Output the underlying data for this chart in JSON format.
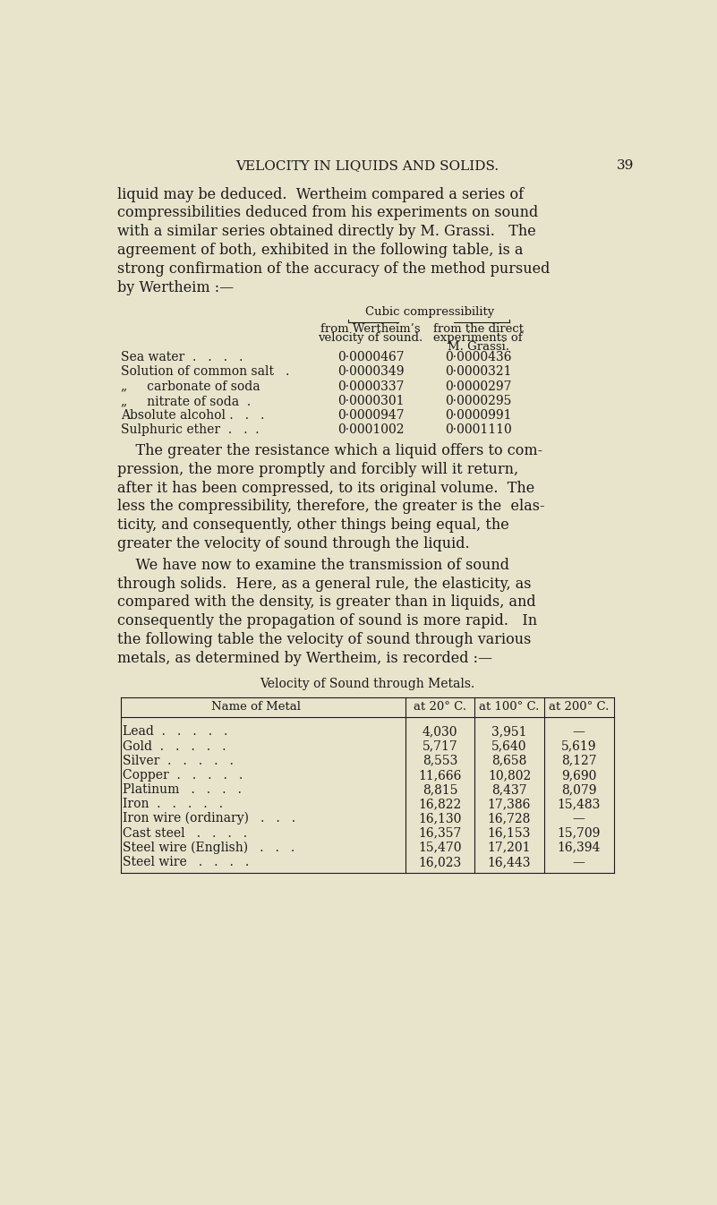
{
  "bg_color": "#e8e4cc",
  "header_title": "VELOCITY IN LIQUIDS AND SOLIDS.",
  "header_page": "39",
  "paragraph1_lines": [
    "liquid may be deduced.  Wertheim compared a series of",
    "compressibilities deduced from his experiments on sound",
    "with a similar series obtained directly by M. Grassi.   The",
    "agreement of both, exhibited in the following table, is a",
    "strong confirmation of the accuracy of the method pursued",
    "by Wertheim :—"
  ],
  "cubic_label": "Cubic compressibility",
  "col1_header_line1": "from Wertheim’s",
  "col1_header_line2": "velocity of sound.",
  "col2_header_line1": "from the direct",
  "col2_header_line2": "experiments of",
  "col2_header_line3": "M. Grassi.",
  "liquid_rows": [
    [
      "Sea water  .   .   .   .",
      "0·0000467",
      "0·0000436"
    ],
    [
      "Solution of common salt   .",
      "0·0000349",
      "0·0000321"
    ],
    [
      "„     carbonate of soda",
      "0·0000337",
      "0·0000297"
    ],
    [
      "„     nitrate of soda  .",
      "0·0000301",
      "0·0000295"
    ],
    [
      "Absolute alcohol .   .   .",
      "0·0000947",
      "0·0000991"
    ],
    [
      "Sulphuric ether  .   .  .",
      "0·0001002",
      "0·0001110"
    ]
  ],
  "paragraph2_lines": [
    "    The greater the resistance which a liquid offers to com-",
    "pression, the more promptly and forcibly will it return,",
    "after it has been compressed, to its original volume.  The",
    "less the compressibility, therefore, the greater is the  elas-",
    "ticity, and consequently, other things being equal, the",
    "greater the velocity of sound through the liquid."
  ],
  "paragraph3_lines": [
    "    We have now to examine the transmission of sound",
    "through solids.  Here, as a general rule, the elasticity, as",
    "compared with the density, is greater than in liquids, and",
    "consequently the propagation of sound is more rapid.   In",
    "the following table the velocity of sound through various",
    "metals, as determined by Wertheim, is recorded :—"
  ],
  "metals_title": "Velocity of Sound through Metals.",
  "metals_col_headers": [
    "Name of Metal",
    "at 20° C.",
    "at 100° C.",
    "at 200° C."
  ],
  "metals_rows": [
    [
      "Lead  .   .   .   .   .",
      "4,030",
      "3,951",
      "—"
    ],
    [
      "Gold  .   .   .   .   .",
      "5,717",
      "5,640",
      "5,619"
    ],
    [
      "Silver  .   .   .   .   .",
      "8,553",
      "8,658",
      "8,127"
    ],
    [
      "Copper  .   .   .   .   .",
      "11,666",
      "10,802",
      "9,690"
    ],
    [
      "Platinum   .   .   .   .",
      "8,815",
      "8,437",
      "8,079"
    ],
    [
      "Iron  .   .   .   .   .",
      "16,822",
      "17,386",
      "15,483"
    ],
    [
      "Iron wire (ordinary)   .   .   .",
      "16,130",
      "16,728",
      "—"
    ],
    [
      "Cast steel   .   .   .   .",
      "16,357",
      "16,153",
      "15,709"
    ],
    [
      "Steel wire (English)   .   .   .",
      "15,470",
      "17,201",
      "16,394"
    ],
    [
      "Steel wire   .   .   .   .",
      "16,023",
      "16,443",
      "—"
    ]
  ],
  "text_color": "#1a1a1a"
}
